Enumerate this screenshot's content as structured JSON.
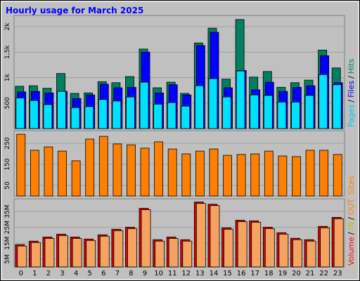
{
  "chart_data": [
    {
      "type": "bar",
      "title": "Hourly usage for March 2025",
      "ylim": [
        0,
        2220
      ],
      "yticks": [
        500,
        {
          "value": 1000,
          "label": "1k"
        },
        {
          "value": 1500,
          "label": "1,5k"
        },
        {
          "value": 2000,
          "label": "2k"
        }
      ],
      "legend": [
        {
          "text": "Pages",
          "color": "#00c8e8"
        },
        {
          "text": "/",
          "color": "#000000"
        },
        {
          "text": "Files",
          "color": "#0000ff"
        },
        {
          "text": "/",
          "color": "#000000"
        },
        {
          "text": "Hits",
          "color": "#008060"
        }
      ],
      "series": [
        {
          "name": "Hits",
          "color": "#008060",
          "values": [
            830,
            840,
            790,
            1080,
            690,
            700,
            920,
            900,
            1020,
            1560,
            800,
            910,
            690,
            1680,
            1970,
            970,
            2140,
            1010,
            1120,
            810,
            900,
            950,
            1540,
            1190
          ]
        },
        {
          "name": "Files",
          "color": "#0000ff",
          "values": [
            720,
            730,
            700,
            730,
            590,
            660,
            870,
            800,
            810,
            1500,
            700,
            860,
            660,
            1630,
            1890,
            800,
            1140,
            760,
            910,
            730,
            810,
            840,
            1430,
            900
          ]
        },
        {
          "name": "Pages",
          "color": "#00e0ff",
          "values": [
            600,
            550,
            470,
            730,
            410,
            430,
            570,
            540,
            620,
            910,
            480,
            510,
            440,
            840,
            980,
            620,
            1130,
            660,
            650,
            520,
            520,
            650,
            1060,
            860
          ]
        }
      ]
    },
    {
      "type": "bar",
      "ylim": [
        0,
        310
      ],
      "yticks": [
        50,
        150,
        250
      ],
      "legend": [
        {
          "text": "Sites",
          "color": "#ff8000"
        }
      ],
      "series": [
        {
          "name": "Sites",
          "color": "#ff8000",
          "values": [
            293,
            217,
            233,
            213,
            167,
            270,
            283,
            247,
            243,
            227,
            257,
            223,
            200,
            213,
            223,
            193,
            197,
            200,
            213,
            190,
            187,
            217,
            217,
            197
          ]
        }
      ]
    },
    {
      "type": "bar",
      "ylim": [
        0,
        43
      ],
      "yticks": [
        {
          "value": 5,
          "label": "5M"
        },
        {
          "value": 15,
          "label": "15M"
        },
        {
          "value": 25,
          "label": "25M"
        },
        {
          "value": 35,
          "label": "35M"
        }
      ],
      "legend": [
        {
          "text": "Volume",
          "color": "#ff0000"
        },
        {
          "text": "/",
          "color": "#000000"
        },
        {
          "text": "IN",
          "color": "#c0c000"
        },
        {
          "text": "/",
          "color": "#000000"
        },
        {
          "text": "OUT",
          "color": "#ff8000"
        }
      ],
      "categories": [
        "0",
        "1",
        "2",
        "3",
        "4",
        "5",
        "6",
        "7",
        "8",
        "9",
        "10",
        "11",
        "12",
        "13",
        "14",
        "15",
        "16",
        "17",
        "18",
        "19",
        "20",
        "21",
        "22",
        "23"
      ],
      "series": [
        {
          "name": "Volume",
          "color": "#e00000",
          "values": [
            14.1,
            16.3,
            18.9,
            20.7,
            18.9,
            17.6,
            20.3,
            23.8,
            25.1,
            37.0,
            17.2,
            18.9,
            17.2,
            41.0,
            39.6,
            24.7,
            29.5,
            29.1,
            25.1,
            21.6,
            18.1,
            17.2,
            25.6,
            31.3
          ]
        },
        {
          "name": "OUT",
          "color": "#f4a460",
          "values": [
            13.2,
            15.4,
            18.0,
            19.8,
            18.0,
            16.7,
            19.4,
            22.9,
            24.2,
            36.1,
            16.3,
            18.0,
            16.3,
            40.1,
            38.7,
            23.8,
            28.6,
            28.2,
            24.2,
            20.7,
            17.2,
            16.3,
            24.7,
            30.4
          ]
        }
      ]
    }
  ]
}
